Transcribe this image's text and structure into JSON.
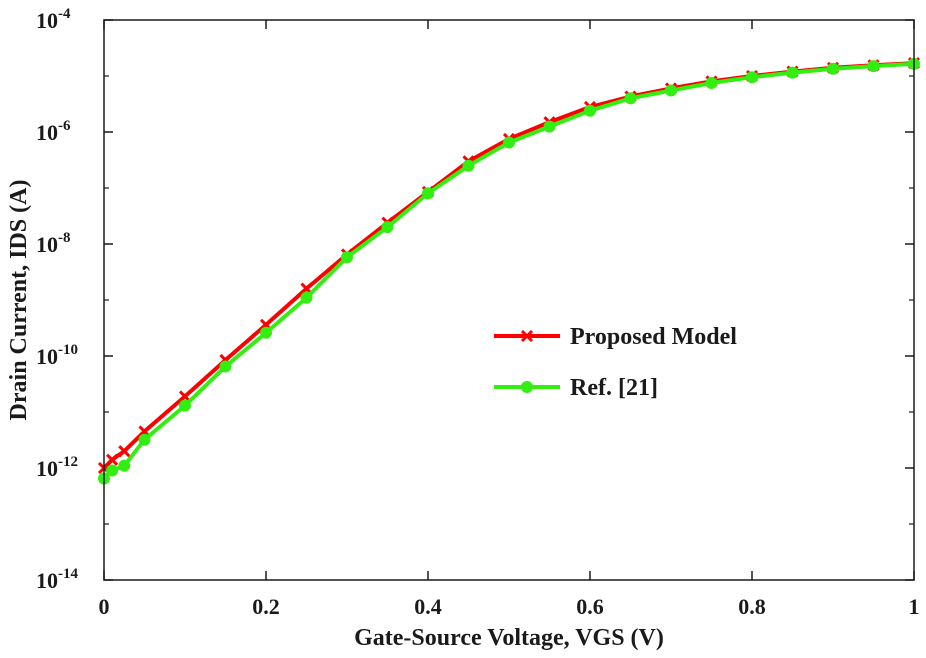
{
  "chart_data": {
    "type": "line",
    "xlabel": "Gate-Source Voltage, VGS (V)",
    "ylabel": "Drain Current, IDS (A)",
    "xlim": [
      0,
      1
    ],
    "ylim": [
      1e-14,
      0.0001
    ],
    "yscale": "log",
    "grid": false,
    "legend_position": "center-right",
    "x_ticks": [
      "0",
      "0.2",
      "0.4",
      "0.6",
      "0.8",
      "1"
    ],
    "y_ticks": [
      {
        "base": "10",
        "exp": "-14"
      },
      {
        "base": "10",
        "exp": "-12"
      },
      {
        "base": "10",
        "exp": "-10"
      },
      {
        "base": "10",
        "exp": "-8"
      },
      {
        "base": "10",
        "exp": "-6"
      },
      {
        "base": "10",
        "exp": "-4"
      }
    ],
    "series": [
      {
        "name": "Proposed Model",
        "color": "#ff0000",
        "marker": "x",
        "x": [
          0,
          0.01,
          0.025,
          0.05,
          0.1,
          0.15,
          0.2,
          0.25,
          0.3,
          0.35,
          0.4,
          0.45,
          0.5,
          0.55,
          0.6,
          0.65,
          0.7,
          0.75,
          0.8,
          0.85,
          0.9,
          0.95,
          1.0
        ],
        "values": [
          1e-12,
          1.4e-12,
          2e-12,
          4.5e-12,
          1.9e-11,
          8.5e-11,
          3.6e-10,
          1.6e-09,
          6.5e-09,
          2.4e-08,
          8.5e-08,
          3e-07,
          7.5e-07,
          1.5e-06,
          2.8e-06,
          4.3e-06,
          6e-06,
          8e-06,
          1e-05,
          1.2e-05,
          1.4e-05,
          1.55e-05,
          1.7e-05
        ]
      },
      {
        "name": "Ref. [21]",
        "color": "#33ee11",
        "marker": "o",
        "x": [
          0,
          0.01,
          0.025,
          0.05,
          0.1,
          0.15,
          0.2,
          0.25,
          0.3,
          0.35,
          0.4,
          0.45,
          0.5,
          0.55,
          0.6,
          0.65,
          0.7,
          0.75,
          0.8,
          0.85,
          0.9,
          0.95,
          1.0
        ],
        "values": [
          6.5e-13,
          9e-13,
          1.1e-12,
          3.2e-12,
          1.3e-11,
          6.5e-11,
          2.6e-10,
          1.1e-09,
          5.8e-09,
          2e-08,
          8e-08,
          2.5e-07,
          6.5e-07,
          1.25e-06,
          2.4e-06,
          4e-06,
          5.5e-06,
          7.5e-06,
          9.5e-06,
          1.15e-05,
          1.35e-05,
          1.5e-05,
          1.65e-05
        ]
      }
    ]
  }
}
